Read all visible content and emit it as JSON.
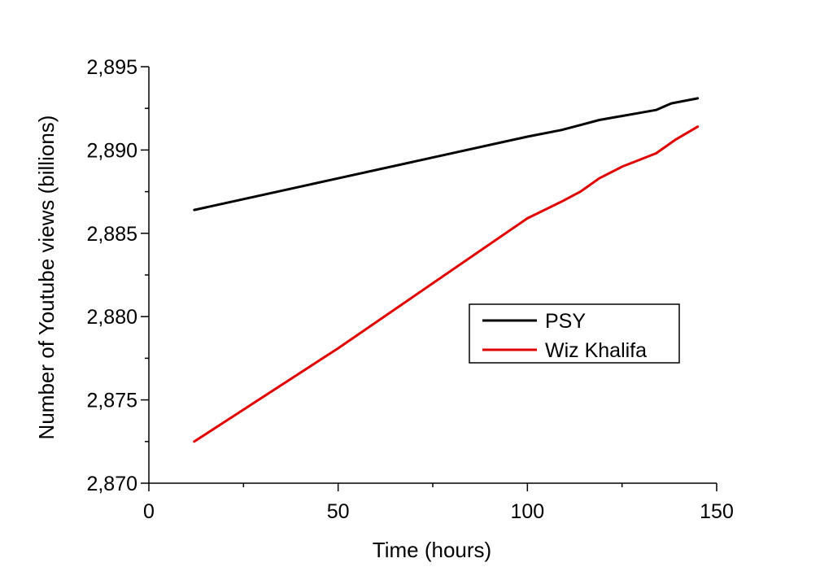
{
  "chart_data": {
    "type": "line",
    "xlabel": "Time (hours)",
    "ylabel": "Number of Youtube views (billions)",
    "xlim": [
      0,
      150
    ],
    "ylim": [
      2.87,
      2.895
    ],
    "xticks": [
      0,
      50,
      100,
      150
    ],
    "xtick_labels": [
      "0",
      "50",
      "100",
      "150"
    ],
    "yticks": [
      2.87,
      2.875,
      2.88,
      2.885,
      2.89,
      2.895
    ],
    "ytick_labels": [
      "2,870",
      "2,875",
      "2,880",
      "2,885",
      "2,890",
      "2,895"
    ],
    "grid": false,
    "legend_position": "center-right",
    "series": [
      {
        "name": "PSY",
        "color": "#000000",
        "x": [
          12,
          50,
          100,
          109,
          114,
          119,
          124,
          129,
          134,
          138,
          145
        ],
        "y": [
          2.8864,
          2.8883,
          2.8908,
          2.8912,
          2.8915,
          2.8918,
          2.892,
          2.8922,
          2.8924,
          2.8928,
          2.8931
        ]
      },
      {
        "name": "Wiz Khalifa",
        "color": "#e00000",
        "x": [
          12,
          50,
          100,
          109,
          114,
          119,
          125,
          134,
          139,
          145
        ],
        "y": [
          2.8725,
          2.8781,
          2.8859,
          2.8869,
          2.8875,
          2.8883,
          2.889,
          2.8898,
          2.8906,
          2.8914
        ]
      }
    ]
  }
}
